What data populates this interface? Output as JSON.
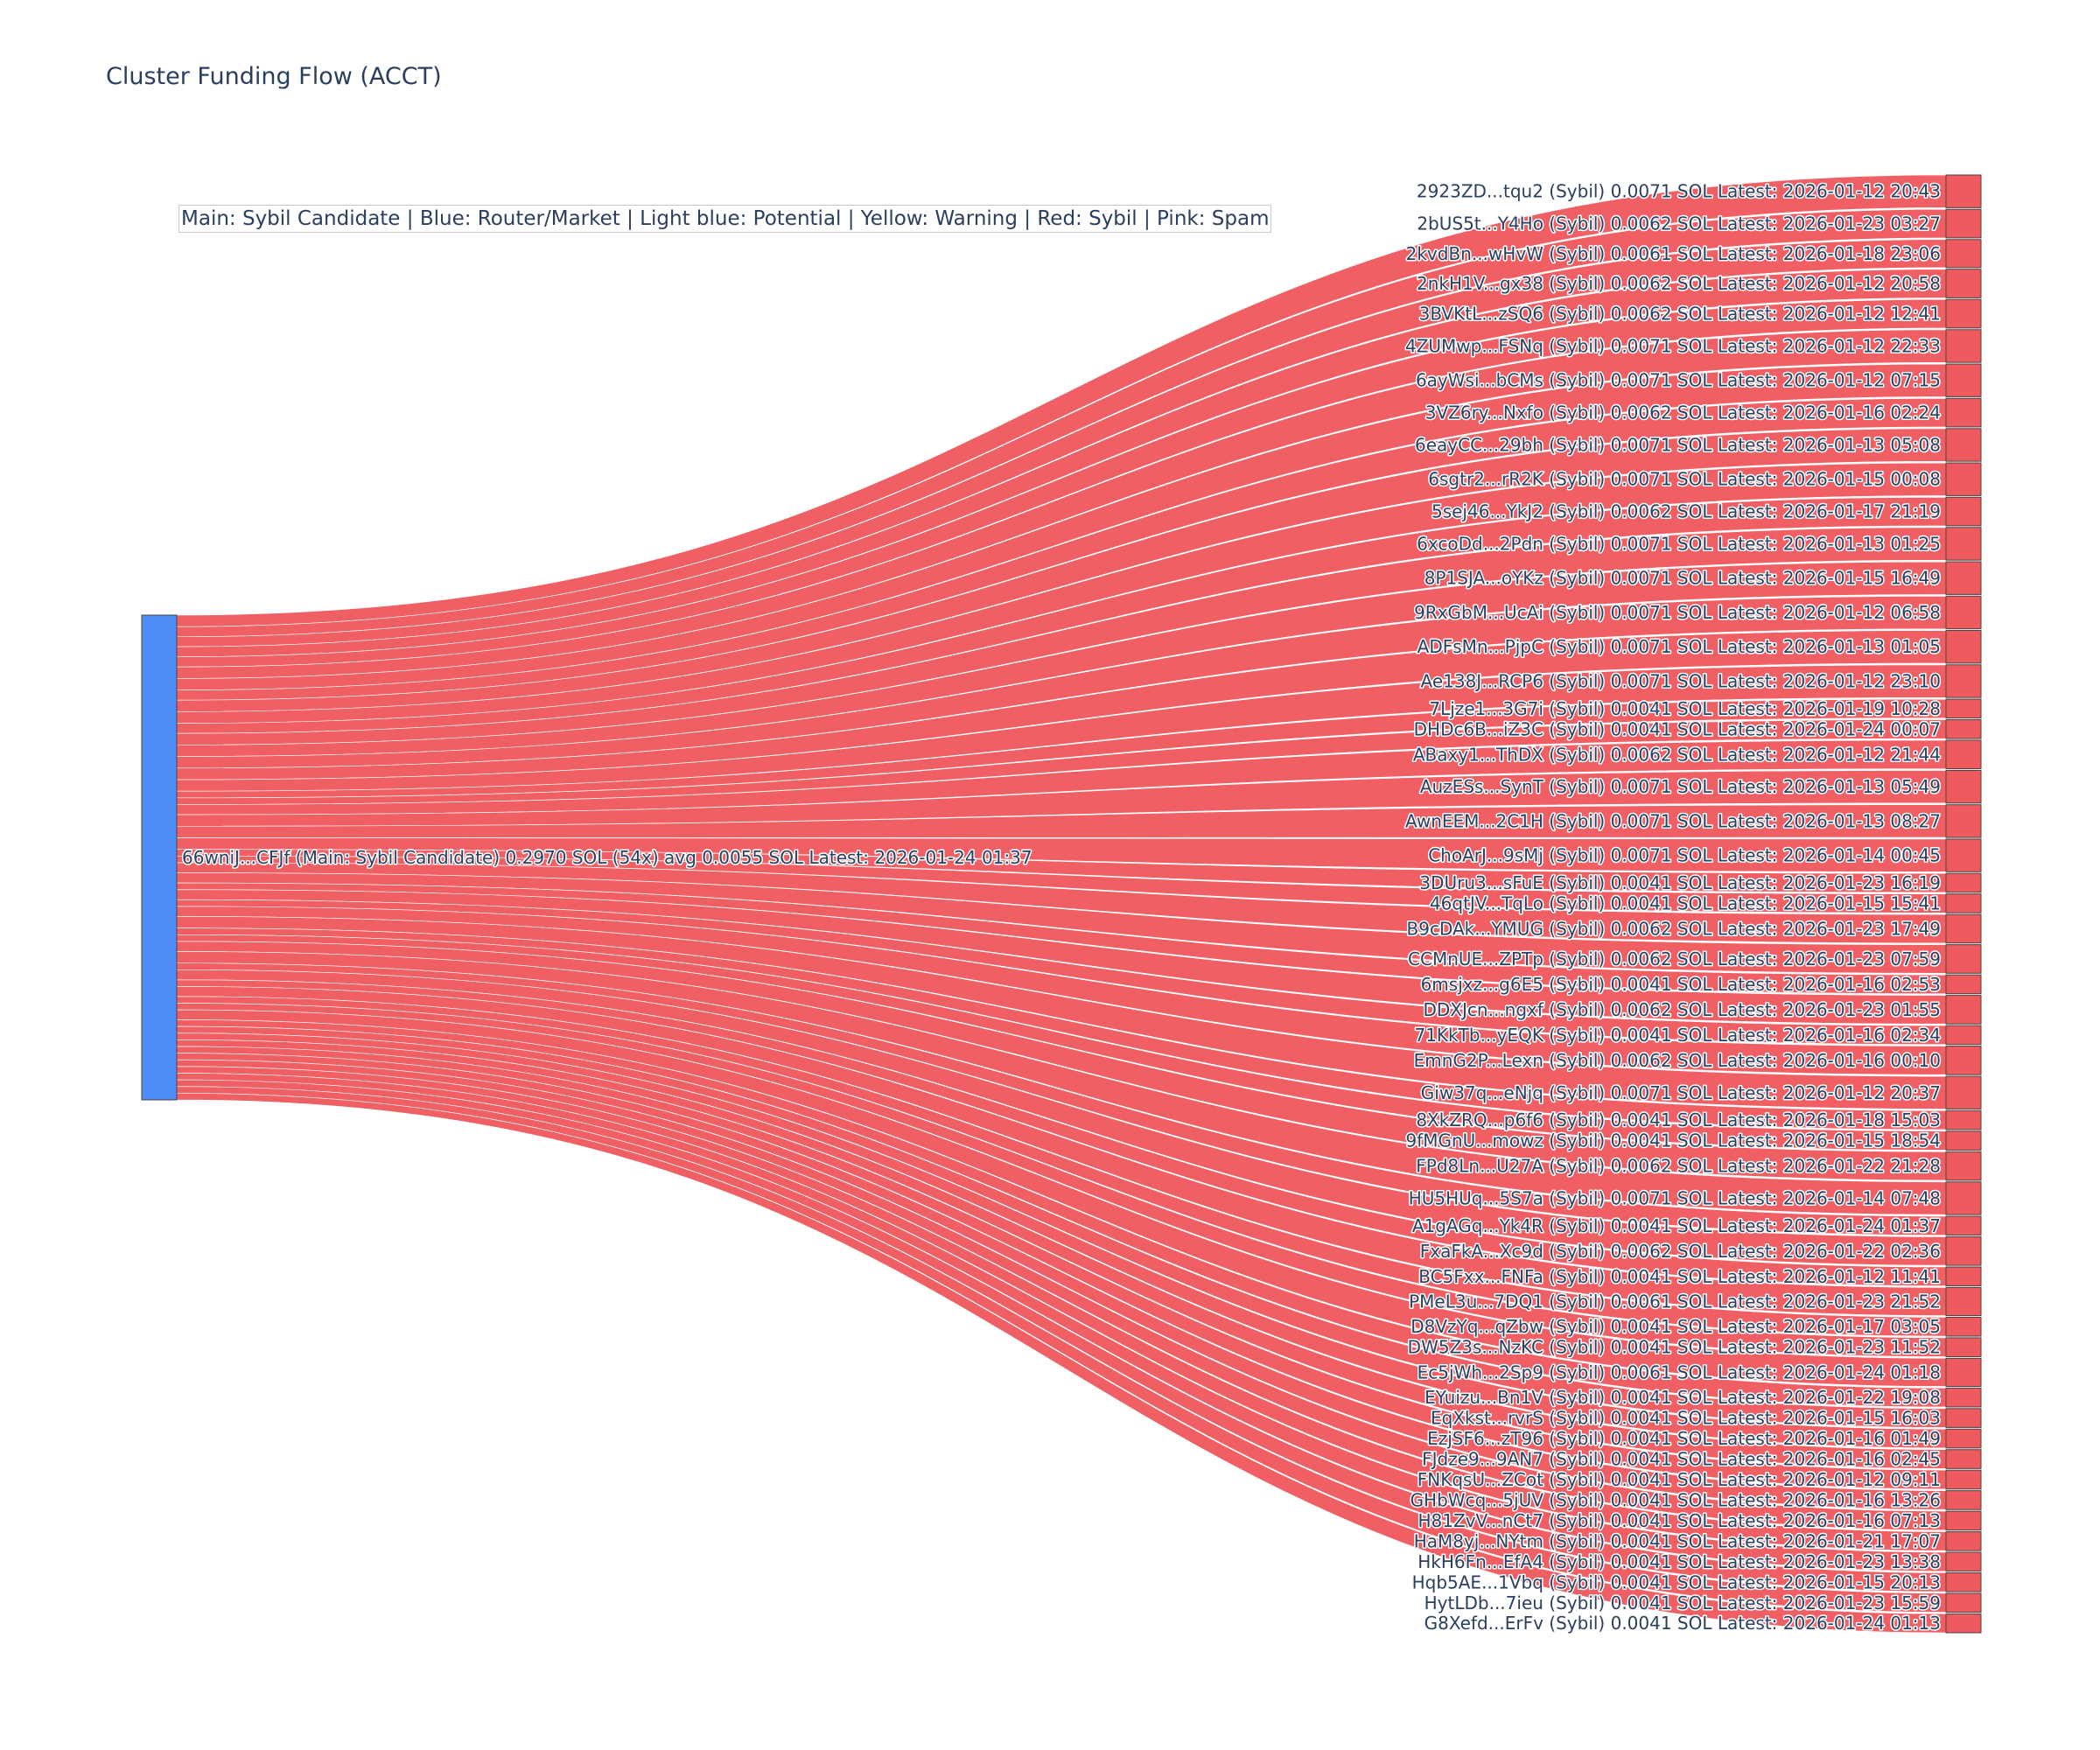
{
  "chart_data": {
    "type": "sankey",
    "title": "Cluster Funding Flow (ACCT)",
    "legend_note": "Main: Sybil Candidate  |  Blue: Router/Market | Light blue: Potential | Yellow: Warning | Red: Sybil | Pink: Spam",
    "colors": {
      "source_node": "#4f8ef7",
      "target_node": "#ef5a5f",
      "link": "#ef5a5f",
      "text": "#2a3f5f"
    },
    "source": {
      "label": "66wniJ...CFJf (Main: Sybil Candidate) 0.2970 SOL (54x) avg 0.0055 SOL Latest: 2026-01-24 01:37",
      "total_sol": 0.297,
      "count": 54,
      "avg_sol": 0.0055
    },
    "targets": [
      {
        "label": "2923ZD...tqu2 (Sybil) 0.0071 SOL Latest: 2026-01-12 20:43",
        "value": 0.0071
      },
      {
        "label": "2bUS5t...Y4Ho (Sybil) 0.0062 SOL Latest: 2026-01-23 03:27",
        "value": 0.0062
      },
      {
        "label": "2kvdBn...wHvW (Sybil) 0.0061 SOL Latest: 2026-01-18 23:06",
        "value": 0.0061
      },
      {
        "label": "2nkH1V...gx38 (Sybil) 0.0062 SOL Latest: 2026-01-12 20:58",
        "value": 0.0062
      },
      {
        "label": "3BVKtL...zSQ6 (Sybil) 0.0062 SOL Latest: 2026-01-12 12:41",
        "value": 0.0062
      },
      {
        "label": "4ZUMwp...FSNq (Sybil) 0.0071 SOL Latest: 2026-01-12 22:33",
        "value": 0.0071
      },
      {
        "label": "6ayWsi...bCMs (Sybil) 0.0071 SOL Latest: 2026-01-12 07:15",
        "value": 0.0071
      },
      {
        "label": "3VZ6ry...Nxfo (Sybil) 0.0062 SOL Latest: 2026-01-16 02:24",
        "value": 0.0062
      },
      {
        "label": "6eayCC...29bh (Sybil) 0.0071 SOL Latest: 2026-01-13 05:08",
        "value": 0.0071
      },
      {
        "label": "6sgtr2...rR2K (Sybil) 0.0071 SOL Latest: 2026-01-15 00:08",
        "value": 0.0071
      },
      {
        "label": "5sej46...YkJ2 (Sybil) 0.0062 SOL Latest: 2026-01-17 21:19",
        "value": 0.0062
      },
      {
        "label": "6xcoDd...2Pdn (Sybil) 0.0071 SOL Latest: 2026-01-13 01:25",
        "value": 0.0071
      },
      {
        "label": "8P1SJA...oYKz (Sybil) 0.0071 SOL Latest: 2026-01-15 16:49",
        "value": 0.0071
      },
      {
        "label": "9RxGbM...UcAi (Sybil) 0.0071 SOL Latest: 2026-01-12 06:58",
        "value": 0.0071
      },
      {
        "label": "ADFsMn...PjpC (Sybil) 0.0071 SOL Latest: 2026-01-13 01:05",
        "value": 0.0071
      },
      {
        "label": "Ae138J...RCP6 (Sybil) 0.0071 SOL Latest: 2026-01-12 23:10",
        "value": 0.0071
      },
      {
        "label": "7Ljze1...3G7i (Sybil) 0.0041 SOL Latest: 2026-01-19 10:28",
        "value": 0.0041
      },
      {
        "label": "DHDc6B...iZ3C (Sybil) 0.0041 SOL Latest: 2026-01-24 00:07",
        "value": 0.0041
      },
      {
        "label": "ABaxy1...ThDX (Sybil) 0.0062 SOL Latest: 2026-01-12 21:44",
        "value": 0.0062
      },
      {
        "label": "AuzESs...SynT (Sybil) 0.0071 SOL Latest: 2026-01-13 05:49",
        "value": 0.0071
      },
      {
        "label": "AwnEEM...2C1H (Sybil) 0.0071 SOL Latest: 2026-01-13 08:27",
        "value": 0.0071
      },
      {
        "label": "ChoArJ...9sMj (Sybil) 0.0071 SOL Latest: 2026-01-14 00:45",
        "value": 0.0071
      },
      {
        "label": "3DUru3...sFuE (Sybil) 0.0041 SOL Latest: 2026-01-23 16:19",
        "value": 0.0041
      },
      {
        "label": "46qtJV...TqLo (Sybil) 0.0041 SOL Latest: 2026-01-15 15:41",
        "value": 0.0041
      },
      {
        "label": "B9cDAk...YMUG (Sybil) 0.0062 SOL Latest: 2026-01-23 17:49",
        "value": 0.0062
      },
      {
        "label": "CCMnUE...ZPTp (Sybil) 0.0062 SOL Latest: 2026-01-23 07:59",
        "value": 0.0062
      },
      {
        "label": "6msjxz...g6E5 (Sybil) 0.0041 SOL Latest: 2026-01-16 02:53",
        "value": 0.0041
      },
      {
        "label": "DDXJcn...ngxf (Sybil) 0.0062 SOL Latest: 2026-01-23 01:55",
        "value": 0.0062
      },
      {
        "label": "71KkTb...yEQK (Sybil) 0.0041 SOL Latest: 2026-01-16 02:34",
        "value": 0.0041
      },
      {
        "label": "EmnG2P...Lexn (Sybil) 0.0062 SOL Latest: 2026-01-16 00:10",
        "value": 0.0062
      },
      {
        "label": "Giw37q...eNjq (Sybil) 0.0071 SOL Latest: 2026-01-12 20:37",
        "value": 0.0071
      },
      {
        "label": "8XkZRQ...p6f6 (Sybil) 0.0041 SOL Latest: 2026-01-18 15:03",
        "value": 0.0041
      },
      {
        "label": "9fMGnU...mowz (Sybil) 0.0041 SOL Latest: 2026-01-15 18:54",
        "value": 0.0041
      },
      {
        "label": "FPd8Ln...U27A (Sybil) 0.0062 SOL Latest: 2026-01-22 21:28",
        "value": 0.0062
      },
      {
        "label": "HU5HUq...5S7a (Sybil) 0.0071 SOL Latest: 2026-01-14 07:48",
        "value": 0.0071
      },
      {
        "label": "A1gAGq...Yk4R (Sybil) 0.0041 SOL Latest: 2026-01-24 01:37",
        "value": 0.0041
      },
      {
        "label": "FxaFkA...Xc9d (Sybil) 0.0062 SOL Latest: 2026-01-22 02:36",
        "value": 0.0062
      },
      {
        "label": "BC5Fxx...FNFa (Sybil) 0.0041 SOL Latest: 2026-01-12 11:41",
        "value": 0.0041
      },
      {
        "label": "PMeL3u...7DQ1 (Sybil) 0.0061 SOL Latest: 2026-01-23 21:52",
        "value": 0.0061
      },
      {
        "label": "D8VzYq...qZbw (Sybil) 0.0041 SOL Latest: 2026-01-17 03:05",
        "value": 0.0041
      },
      {
        "label": "DW5Z3s...NzKC (Sybil) 0.0041 SOL Latest: 2026-01-23 11:52",
        "value": 0.0041
      },
      {
        "label": "Ec5jWh...2Sp9 (Sybil) 0.0061 SOL Latest: 2026-01-24 01:18",
        "value": 0.0061
      },
      {
        "label": "EYuizu...Bn1V (Sybil) 0.0041 SOL Latest: 2026-01-22 19:08",
        "value": 0.0041
      },
      {
        "label": "EqXkst...rvrS (Sybil) 0.0041 SOL Latest: 2026-01-15 16:03",
        "value": 0.0041
      },
      {
        "label": "EzjSF6...zT96 (Sybil) 0.0041 SOL Latest: 2026-01-16 01:49",
        "value": 0.0041
      },
      {
        "label": "FJdze9...9AN7 (Sybil) 0.0041 SOL Latest: 2026-01-16 02:45",
        "value": 0.0041
      },
      {
        "label": "FNKqsU...ZCot (Sybil) 0.0041 SOL Latest: 2026-01-12 09:11",
        "value": 0.0041
      },
      {
        "label": "GHbWcq...5jUV (Sybil) 0.0041 SOL Latest: 2026-01-16 13:26",
        "value": 0.0041
      },
      {
        "label": "H81ZvV...nCt7 (Sybil) 0.0041 SOL Latest: 2026-01-16 07:13",
        "value": 0.0041
      },
      {
        "label": "HaM8yj...NYtm (Sybil) 0.0041 SOL Latest: 2026-01-21 17:07",
        "value": 0.0041
      },
      {
        "label": "HkH6Fn...EfA4 (Sybil) 0.0041 SOL Latest: 2026-01-23 13:38",
        "value": 0.0041
      },
      {
        "label": "Hqb5AE...1Vbq (Sybil) 0.0041 SOL Latest: 2026-01-15 20:13",
        "value": 0.0041
      },
      {
        "label": "HytLDb...7ieu (Sybil) 0.0041 SOL Latest: 2026-01-23 15:59",
        "value": 0.0041
      },
      {
        "label": "G8Xefd...ErFv (Sybil) 0.0041 SOL Latest: 2026-01-24 01:13",
        "value": 0.0041
      }
    ]
  }
}
